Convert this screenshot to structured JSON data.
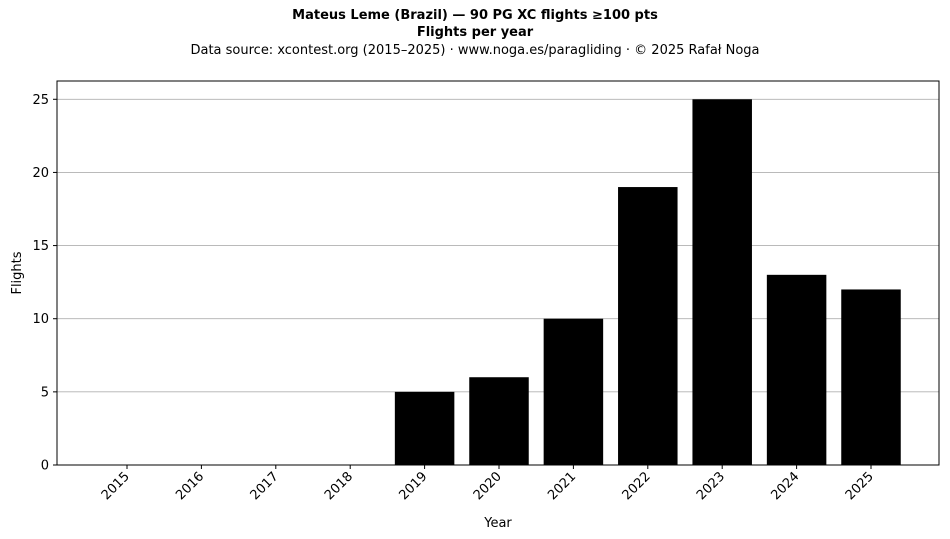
{
  "header": {
    "title": "Mateus Leme (Brazil)  —  90 PG XC flights ≥100 pts",
    "subtitle": "Flights per year",
    "source": "Data source: xcontest.org (2015–2025)  ·  www.noga.es/paragliding  ·  © 2025 Rafał Noga"
  },
  "chart_data": {
    "type": "bar",
    "title": "Mateus Leme (Brazil)  —  90 PG XC flights ≥100 pts",
    "subtitle": "Flights per year",
    "categories": [
      "2015",
      "2016",
      "2017",
      "2018",
      "2019",
      "2020",
      "2021",
      "2022",
      "2023",
      "2024",
      "2025"
    ],
    "values": [
      0,
      0,
      0,
      0,
      5,
      6,
      10,
      19,
      25,
      13,
      12
    ],
    "xlabel": "Year",
    "ylabel": "Flights",
    "ylim": [
      0,
      26.25
    ],
    "yticks": [
      0,
      5,
      10,
      15,
      20,
      25
    ],
    "grid": "y",
    "bar_color": "#000000",
    "grid_color": "#b0b0b0"
  }
}
